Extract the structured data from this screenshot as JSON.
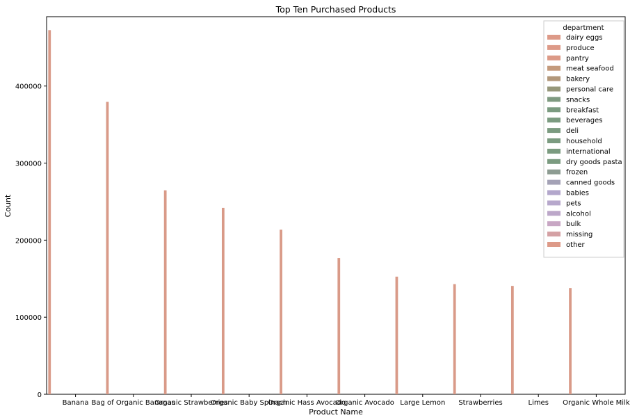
{
  "chart_data": {
    "type": "bar",
    "title": "Top Ten Purchased Products",
    "xlabel": "Product Name",
    "ylabel": "Count",
    "ylim": [
      0,
      490000
    ],
    "yticks": [
      0,
      100000,
      200000,
      300000,
      400000
    ],
    "categories": [
      "Banana",
      "Bag of Organic Bananas",
      "Organic Strawberries",
      "Organic Baby Spinach",
      "Organic Hass Avocado",
      "Organic Avocado",
      "Large Lemon",
      "Strawberries",
      "Limes",
      "Organic Whole Milk"
    ],
    "series": [
      {
        "name": "produce",
        "color": "#d99a88",
        "values": [
          472565,
          379450,
          264683,
          241921,
          213584,
          176815,
          152657,
          142951,
          140627,
          null
        ]
      },
      {
        "name": "dairy eggs",
        "color": "#d99a88",
        "values": [
          null,
          null,
          null,
          null,
          null,
          null,
          null,
          null,
          null,
          137905
        ]
      }
    ],
    "grid": false,
    "legend": {
      "title": "department",
      "placement": "top-right",
      "entries": [
        {
          "label": "dairy eggs",
          "color": "#dd9a88"
        },
        {
          "label": "produce",
          "color": "#dd9a88"
        },
        {
          "label": "pantry",
          "color": "#dc9a87"
        },
        {
          "label": "meat seafood",
          "color": "#c49a7c"
        },
        {
          "label": "bakery",
          "color": "#b2977a"
        },
        {
          "label": "personal care",
          "color": "#96977a"
        },
        {
          "label": "snacks",
          "color": "#7e9a80"
        },
        {
          "label": "breakfast",
          "color": "#7b9b80"
        },
        {
          "label": "beverages",
          "color": "#7b9b80"
        },
        {
          "label": "deli",
          "color": "#7b9b80"
        },
        {
          "label": "household",
          "color": "#7b9b80"
        },
        {
          "label": "international",
          "color": "#7b9b80"
        },
        {
          "label": "dry goods pasta",
          "color": "#7b9b80"
        },
        {
          "label": "frozen",
          "color": "#8d9c92"
        },
        {
          "label": "canned goods",
          "color": "#a4a2b6"
        },
        {
          "label": "babies",
          "color": "#b3a7cc"
        },
        {
          "label": "pets",
          "color": "#b7a8cc"
        },
        {
          "label": "alcohol",
          "color": "#bca7c9"
        },
        {
          "label": "bulk",
          "color": "#c8a7c4"
        },
        {
          "label": "missing",
          "color": "#d4a1a4"
        },
        {
          "label": "other",
          "color": "#dd9a88"
        }
      ]
    }
  }
}
